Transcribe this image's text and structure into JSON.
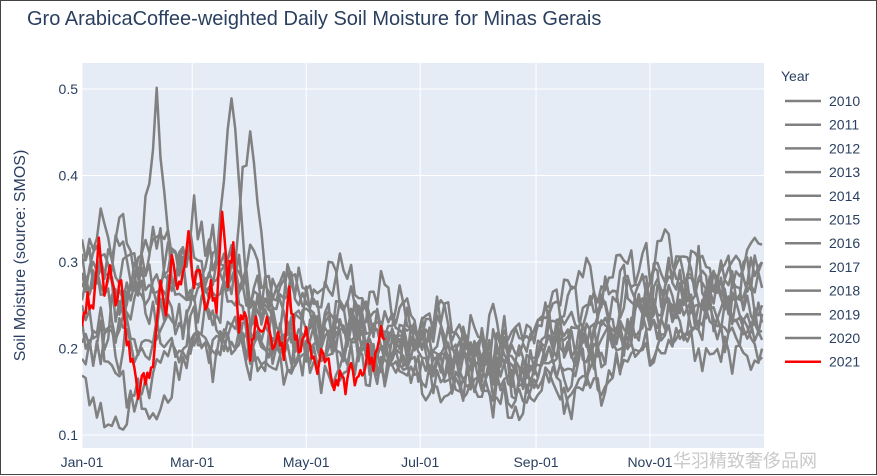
{
  "chart_data": {
    "type": "line",
    "title": "Gro ArabicaCoffee-weighted Daily Soil Moisture for Minas Gerais",
    "ylabel": "Soil Moisture (source: SMOS)",
    "xlabel": "",
    "ylim": [
      0.085,
      0.53
    ],
    "xlim_day": [
      0,
      365
    ],
    "y_ticks": [
      0.1,
      0.2,
      0.3,
      0.4,
      0.5
    ],
    "x_ticks": [
      {
        "label": "Jan-01",
        "day": 0
      },
      {
        "label": "Mar-01",
        "day": 59
      },
      {
        "label": "May-01",
        "day": 120
      },
      {
        "label": "Jul-01",
        "day": 181
      },
      {
        "label": "Sep-01",
        "day": 243
      },
      {
        "label": "Nov-01",
        "day": 304
      }
    ],
    "legend_title": "Year",
    "legend_position": "right",
    "grid": true,
    "series_note": "gray lines 2010-2020 approximate, 2021 red partial year",
    "series": [
      {
        "name": "2010",
        "color": "#808080",
        "x": [
          0,
          10,
          20,
          30,
          40,
          50,
          60,
          70,
          80,
          90,
          100,
          110,
          120,
          130,
          140,
          150,
          160,
          170,
          180,
          190,
          200,
          210,
          220,
          230,
          240,
          250,
          260,
          270,
          280,
          290,
          300,
          310,
          320,
          330,
          340,
          350,
          364
        ],
        "y": [
          0.25,
          0.28,
          0.22,
          0.3,
          0.26,
          0.33,
          0.24,
          0.27,
          0.29,
          0.23,
          0.22,
          0.25,
          0.2,
          0.24,
          0.19,
          0.22,
          0.21,
          0.18,
          0.2,
          0.19,
          0.17,
          0.18,
          0.16,
          0.15,
          0.17,
          0.19,
          0.16,
          0.22,
          0.2,
          0.24,
          0.22,
          0.27,
          0.25,
          0.29,
          0.24,
          0.27,
          0.23
        ]
      },
      {
        "name": "2011",
        "color": "#808080",
        "x": [
          0,
          10,
          20,
          30,
          40,
          50,
          60,
          70,
          80,
          90,
          100,
          110,
          120,
          130,
          140,
          150,
          160,
          170,
          180,
          190,
          200,
          210,
          220,
          230,
          240,
          250,
          260,
          270,
          280,
          290,
          300,
          310,
          320,
          330,
          340,
          350,
          364
        ],
        "y": [
          0.32,
          0.27,
          0.36,
          0.25,
          0.3,
          0.22,
          0.27,
          0.31,
          0.24,
          0.26,
          0.23,
          0.21,
          0.24,
          0.22,
          0.25,
          0.21,
          0.19,
          0.22,
          0.18,
          0.2,
          0.21,
          0.17,
          0.19,
          0.18,
          0.16,
          0.2,
          0.22,
          0.19,
          0.25,
          0.21,
          0.28,
          0.23,
          0.26,
          0.3,
          0.22,
          0.25,
          0.27
        ]
      },
      {
        "name": "2012",
        "color": "#808080",
        "x": [
          0,
          10,
          20,
          30,
          40,
          50,
          60,
          70,
          80,
          90,
          100,
          110,
          120,
          130,
          140,
          150,
          160,
          170,
          180,
          190,
          200,
          210,
          220,
          230,
          240,
          250,
          260,
          270,
          280,
          290,
          300,
          310,
          320,
          330,
          340,
          350,
          364
        ],
        "y": [
          0.2,
          0.24,
          0.19,
          0.29,
          0.49,
          0.25,
          0.28,
          0.22,
          0.3,
          0.26,
          0.24,
          0.19,
          0.22,
          0.2,
          0.23,
          0.19,
          0.21,
          0.2,
          0.22,
          0.18,
          0.17,
          0.2,
          0.18,
          0.17,
          0.19,
          0.21,
          0.18,
          0.2,
          0.23,
          0.2,
          0.24,
          0.26,
          0.21,
          0.25,
          0.28,
          0.22,
          0.24
        ]
      },
      {
        "name": "2013",
        "color": "#808080",
        "x": [
          0,
          10,
          20,
          30,
          40,
          50,
          60,
          70,
          80,
          90,
          100,
          110,
          120,
          130,
          140,
          150,
          160,
          170,
          180,
          190,
          200,
          210,
          220,
          230,
          240,
          250,
          260,
          270,
          280,
          290,
          300,
          310,
          320,
          330,
          340,
          350,
          364
        ],
        "y": [
          0.28,
          0.31,
          0.25,
          0.27,
          0.23,
          0.29,
          0.32,
          0.26,
          0.51,
          0.24,
          0.27,
          0.22,
          0.25,
          0.21,
          0.23,
          0.24,
          0.2,
          0.19,
          0.21,
          0.19,
          0.18,
          0.2,
          0.19,
          0.16,
          0.18,
          0.23,
          0.2,
          0.21,
          0.19,
          0.27,
          0.23,
          0.25,
          0.3,
          0.24,
          0.27,
          0.29,
          0.25
        ]
      },
      {
        "name": "2014",
        "color": "#808080",
        "x": [
          0,
          10,
          20,
          30,
          40,
          50,
          60,
          70,
          80,
          90,
          100,
          110,
          120,
          130,
          140,
          150,
          160,
          170,
          180,
          190,
          200,
          210,
          220,
          230,
          240,
          250,
          260,
          270,
          280,
          290,
          300,
          310,
          320,
          330,
          340,
          350,
          364
        ],
        "y": [
          0.18,
          0.21,
          0.16,
          0.14,
          0.17,
          0.2,
          0.23,
          0.19,
          0.21,
          0.18,
          0.2,
          0.17,
          0.19,
          0.16,
          0.2,
          0.18,
          0.17,
          0.19,
          0.16,
          0.17,
          0.15,
          0.17,
          0.14,
          0.16,
          0.15,
          0.17,
          0.14,
          0.18,
          0.16,
          0.19,
          0.21,
          0.18,
          0.22,
          0.19,
          0.21,
          0.18,
          0.2
        ]
      },
      {
        "name": "2015",
        "color": "#808080",
        "x": [
          0,
          10,
          20,
          30,
          40,
          50,
          60,
          70,
          80,
          90,
          100,
          110,
          120,
          130,
          140,
          150,
          160,
          170,
          180,
          190,
          200,
          210,
          220,
          230,
          240,
          250,
          260,
          270,
          280,
          290,
          300,
          310,
          320,
          330,
          340,
          350,
          364
        ],
        "y": [
          0.16,
          0.13,
          0.11,
          0.15,
          0.12,
          0.17,
          0.21,
          0.18,
          0.24,
          0.2,
          0.22,
          0.19,
          0.23,
          0.2,
          0.18,
          0.21,
          0.17,
          0.19,
          0.17,
          0.15,
          0.16,
          0.14,
          0.16,
          0.13,
          0.14,
          0.16,
          0.13,
          0.17,
          0.15,
          0.2,
          0.18,
          0.22,
          0.2,
          0.24,
          0.2,
          0.23,
          0.19
        ]
      },
      {
        "name": "2016",
        "color": "#808080",
        "x": [
          0,
          10,
          20,
          30,
          40,
          50,
          60,
          70,
          80,
          90,
          100,
          110,
          120,
          130,
          140,
          150,
          160,
          170,
          180,
          190,
          200,
          210,
          220,
          230,
          240,
          250,
          260,
          270,
          280,
          290,
          300,
          310,
          320,
          330,
          340,
          350,
          364
        ],
        "y": [
          0.3,
          0.27,
          0.33,
          0.28,
          0.35,
          0.3,
          0.26,
          0.29,
          0.27,
          0.47,
          0.26,
          0.28,
          0.24,
          0.27,
          0.3,
          0.25,
          0.23,
          0.26,
          0.22,
          0.24,
          0.21,
          0.22,
          0.2,
          0.21,
          0.22,
          0.25,
          0.27,
          0.23,
          0.28,
          0.25,
          0.31,
          0.27,
          0.3,
          0.26,
          0.29,
          0.27,
          0.3
        ]
      },
      {
        "name": "2017",
        "color": "#808080",
        "x": [
          0,
          10,
          20,
          30,
          40,
          50,
          60,
          70,
          80,
          90,
          100,
          110,
          120,
          130,
          140,
          150,
          160,
          170,
          180,
          190,
          200,
          210,
          220,
          230,
          240,
          250,
          260,
          270,
          280,
          290,
          300,
          310,
          320,
          330,
          340,
          350,
          364
        ],
        "y": [
          0.24,
          0.21,
          0.26,
          0.2,
          0.23,
          0.19,
          0.22,
          0.25,
          0.21,
          0.24,
          0.2,
          0.22,
          0.19,
          0.21,
          0.23,
          0.2,
          0.18,
          0.21,
          0.2,
          0.18,
          0.19,
          0.17,
          0.18,
          0.16,
          0.17,
          0.19,
          0.21,
          0.18,
          0.22,
          0.2,
          0.26,
          0.23,
          0.25,
          0.22,
          0.27,
          0.24,
          0.22
        ]
      },
      {
        "name": "2018",
        "color": "#808080",
        "x": [
          0,
          10,
          20,
          30,
          40,
          50,
          60,
          70,
          80,
          90,
          100,
          110,
          120,
          130,
          140,
          150,
          160,
          170,
          180,
          190,
          200,
          210,
          220,
          230,
          240,
          250,
          260,
          270,
          280,
          290,
          300,
          310,
          320,
          330,
          340,
          350,
          364
        ],
        "y": [
          0.26,
          0.3,
          0.24,
          0.29,
          0.33,
          0.27,
          0.36,
          0.29,
          0.31,
          0.27,
          0.25,
          0.29,
          0.26,
          0.23,
          0.26,
          0.24,
          0.22,
          0.25,
          0.21,
          0.23,
          0.2,
          0.22,
          0.19,
          0.2,
          0.21,
          0.24,
          0.22,
          0.26,
          0.24,
          0.28,
          0.25,
          0.3,
          0.27,
          0.32,
          0.28,
          0.26,
          0.3
        ]
      },
      {
        "name": "2019",
        "color": "#808080",
        "x": [
          0,
          10,
          20,
          30,
          40,
          50,
          60,
          70,
          80,
          90,
          100,
          110,
          120,
          130,
          140,
          150,
          160,
          170,
          180,
          190,
          200,
          210,
          220,
          230,
          240,
          250,
          260,
          270,
          280,
          290,
          300,
          310,
          320,
          330,
          340,
          350,
          364
        ],
        "y": [
          0.22,
          0.19,
          0.23,
          0.18,
          0.2,
          0.24,
          0.21,
          0.19,
          0.22,
          0.2,
          0.18,
          0.21,
          0.19,
          0.22,
          0.2,
          0.24,
          0.21,
          0.19,
          0.2,
          0.18,
          0.19,
          0.17,
          0.2,
          0.18,
          0.19,
          0.22,
          0.19,
          0.21,
          0.24,
          0.21,
          0.25,
          0.22,
          0.27,
          0.24,
          0.22,
          0.25,
          0.21
        ]
      },
      {
        "name": "2020",
        "color": "#808080",
        "x": [
          0,
          10,
          20,
          30,
          40,
          50,
          60,
          70,
          80,
          90,
          100,
          110,
          120,
          130,
          140,
          150,
          160,
          170,
          180,
          190,
          200,
          210,
          220,
          230,
          240,
          250,
          260,
          270,
          280,
          290,
          300,
          310,
          320,
          330,
          340,
          350,
          364
        ],
        "y": [
          0.29,
          0.34,
          0.28,
          0.3,
          0.26,
          0.31,
          0.28,
          0.33,
          0.27,
          0.3,
          0.26,
          0.28,
          0.25,
          0.29,
          0.26,
          0.23,
          0.27,
          0.24,
          0.22,
          0.25,
          0.22,
          0.2,
          0.23,
          0.21,
          0.2,
          0.26,
          0.24,
          0.29,
          0.25,
          0.31,
          0.27,
          0.33,
          0.29,
          0.26,
          0.3,
          0.28,
          0.32
        ]
      },
      {
        "name": "2021",
        "color": "#ff0000",
        "x": [
          0,
          3,
          6,
          9,
          12,
          15,
          18,
          21,
          24,
          27,
          30,
          33,
          36,
          39,
          42,
          45,
          48,
          51,
          54,
          57,
          60,
          63,
          66,
          69,
          72,
          75,
          78,
          81,
          84,
          87,
          90,
          93,
          96,
          99,
          102,
          105,
          108,
          111,
          114,
          117,
          120,
          123,
          126,
          129,
          132,
          135,
          138,
          141,
          144,
          147,
          150,
          153,
          156,
          159,
          162
        ],
        "y": [
          0.22,
          0.26,
          0.24,
          0.33,
          0.27,
          0.3,
          0.25,
          0.28,
          0.21,
          0.18,
          0.15,
          0.17,
          0.16,
          0.2,
          0.27,
          0.23,
          0.31,
          0.26,
          0.29,
          0.33,
          0.27,
          0.3,
          0.24,
          0.27,
          0.25,
          0.36,
          0.28,
          0.32,
          0.22,
          0.25,
          0.19,
          0.23,
          0.21,
          0.24,
          0.2,
          0.22,
          0.19,
          0.27,
          0.21,
          0.2,
          0.22,
          0.19,
          0.17,
          0.2,
          0.18,
          0.16,
          0.17,
          0.15,
          0.18,
          0.16,
          0.17,
          0.2,
          0.17,
          0.22,
          0.21
        ]
      }
    ]
  },
  "watermark": "华羽精致奢侈品网"
}
